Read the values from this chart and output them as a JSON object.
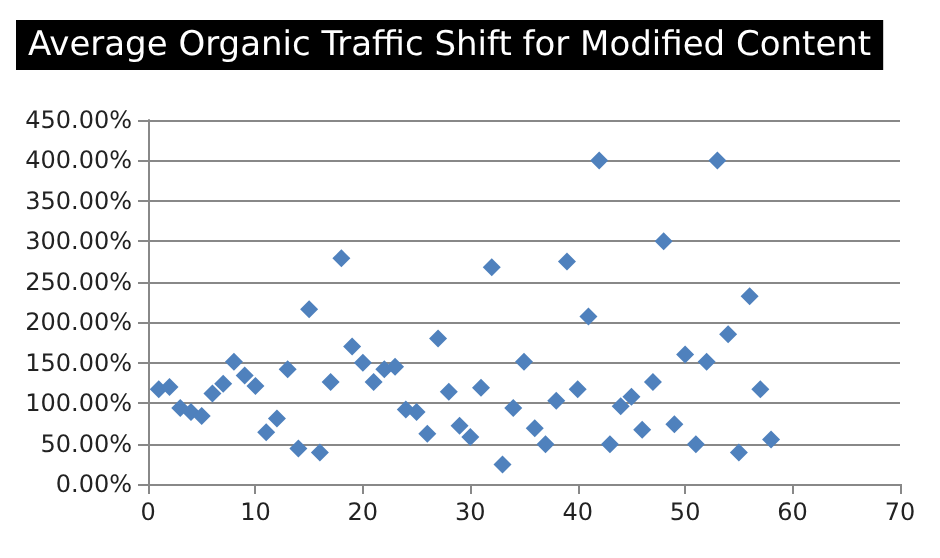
{
  "chart_data": {
    "type": "scatter",
    "title": "Average Organic Traffic Shift for Modified Content",
    "x": [
      1,
      2,
      3,
      4,
      5,
      6,
      7,
      8,
      9,
      10,
      11,
      12,
      13,
      14,
      15,
      16,
      17,
      18,
      19,
      20,
      21,
      22,
      23,
      24,
      25,
      26,
      27,
      28,
      29,
      30,
      31,
      32,
      33,
      34,
      35,
      36,
      37,
      38,
      39,
      40,
      41,
      42,
      43,
      44,
      45,
      46,
      47,
      48,
      49,
      50,
      51,
      52,
      53,
      54,
      55,
      56,
      57,
      58
    ],
    "values": [
      117,
      120,
      94,
      89,
      84,
      112,
      124,
      151,
      134,
      121,
      64,
      81,
      142,
      44,
      216,
      39,
      126,
      279,
      170,
      150,
      126,
      142,
      145,
      92,
      89,
      62,
      180,
      114,
      72,
      58,
      119,
      268,
      24,
      94,
      151,
      69,
      49,
      103,
      275,
      117,
      207,
      400,
      49,
      96,
      108,
      67,
      126,
      300,
      74,
      160,
      49,
      151,
      400,
      185,
      39,
      232,
      117,
      55
    ],
    "color": "#4f81bd",
    "marker": "diamond",
    "grid": "y",
    "xlim": [
      0,
      70
    ],
    "xticks": [
      0,
      10,
      20,
      30,
      40,
      50,
      60,
      70
    ],
    "ylim": [
      0,
      450
    ],
    "yticks": [
      {
        "value": 0,
        "label": "0.00%"
      },
      {
        "value": 50,
        "label": "50.00%"
      },
      {
        "value": 100,
        "label": "100.00%"
      },
      {
        "value": 150,
        "label": "150.00%"
      },
      {
        "value": 200,
        "label": "200.00%"
      },
      {
        "value": 250,
        "label": "250.00%"
      },
      {
        "value": 300,
        "label": "300.00%"
      },
      {
        "value": 350,
        "label": "350.00%"
      },
      {
        "value": 400,
        "label": "400.00%"
      },
      {
        "value": 450,
        "label": "450.00%"
      }
    ]
  }
}
